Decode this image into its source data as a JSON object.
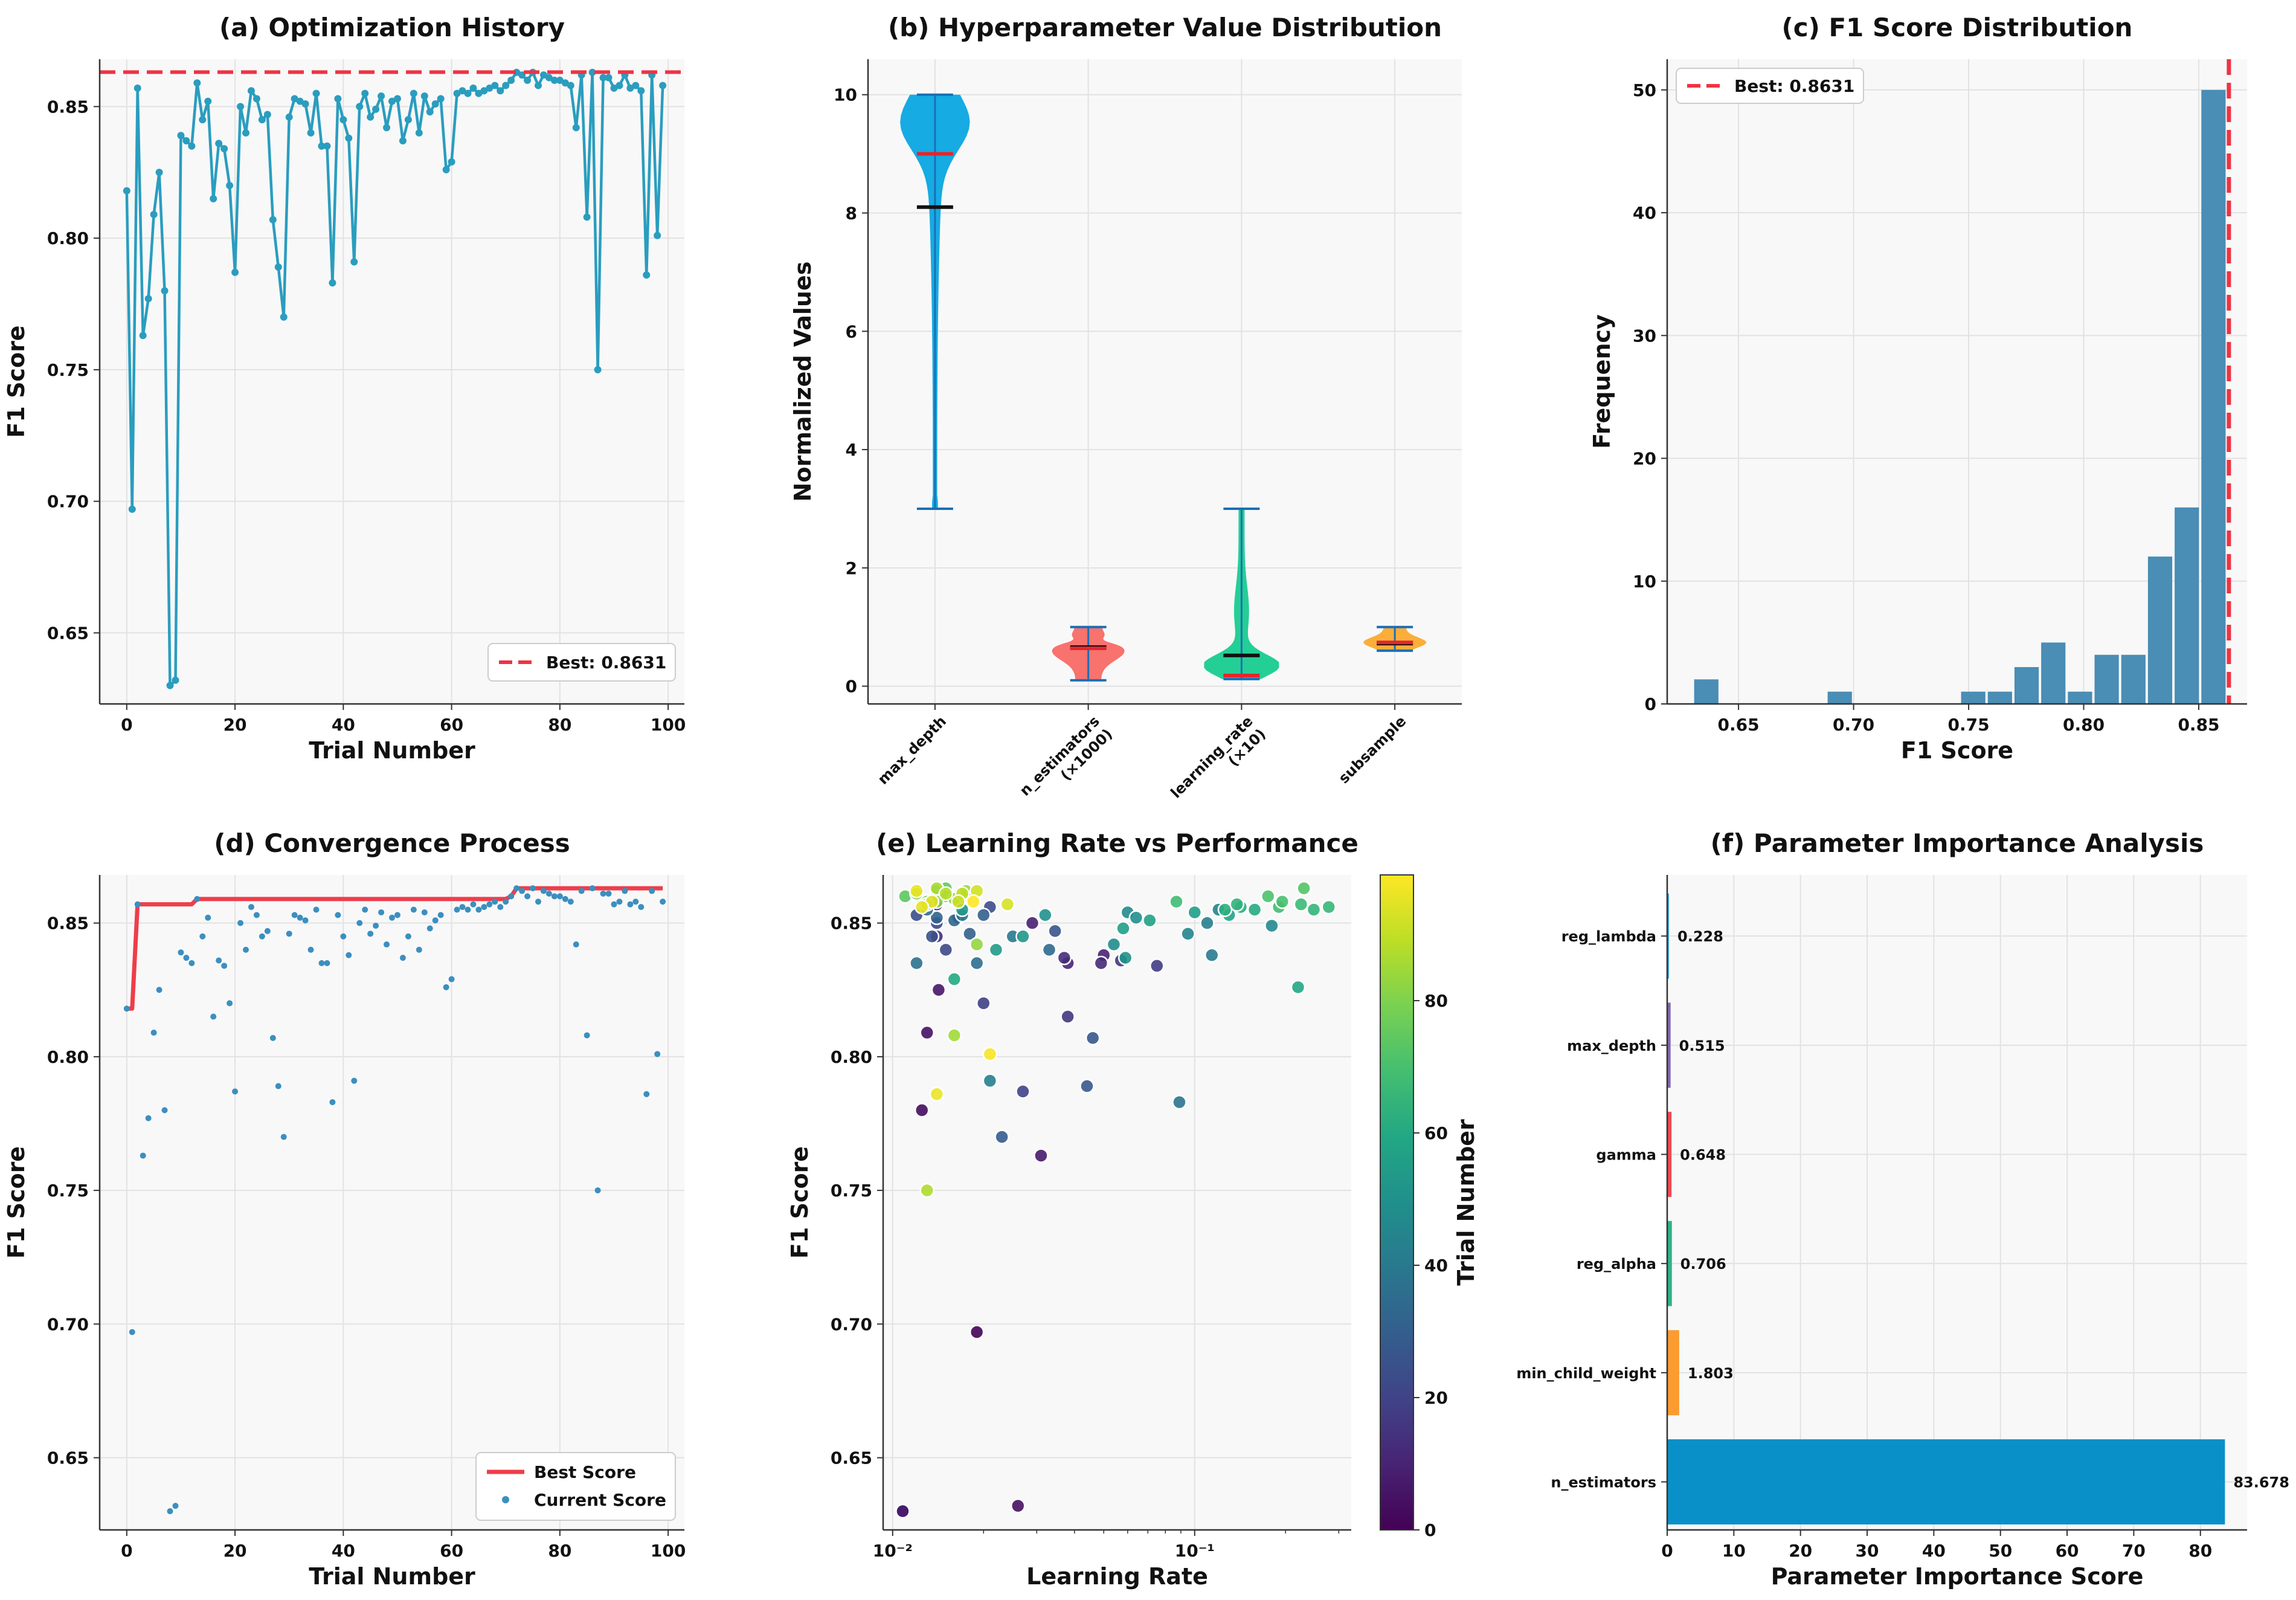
{
  "chart_data": [
    {
      "id": "a",
      "type": "line",
      "title": "(a) Optimization History",
      "xlabel": "Trial Number",
      "ylabel": "F1 Score",
      "xlim": [
        -5,
        103
      ],
      "ylim": [
        0.623,
        0.868
      ],
      "xticks": [
        0,
        20,
        40,
        60,
        80,
        100
      ],
      "yticks": [
        0.65,
        0.7,
        0.75,
        0.8,
        0.85
      ],
      "best": 0.8631,
      "legend": "Best: 0.8631",
      "color": "#2a9dbf",
      "x": [
        0,
        1,
        2,
        3,
        4,
        5,
        6,
        7,
        8,
        9,
        10,
        11,
        12,
        13,
        14,
        15,
        16,
        17,
        18,
        19,
        20,
        21,
        22,
        23,
        24,
        25,
        26,
        27,
        28,
        29,
        30,
        31,
        32,
        33,
        34,
        35,
        36,
        37,
        38,
        39,
        40,
        41,
        42,
        43,
        44,
        45,
        46,
        47,
        48,
        49,
        50,
        51,
        52,
        53,
        54,
        55,
        56,
        57,
        58,
        59,
        60,
        61,
        62,
        63,
        64,
        65,
        66,
        67,
        68,
        69,
        70,
        71,
        72,
        73,
        74,
        75,
        76,
        77,
        78,
        79,
        80,
        81,
        82,
        83,
        84,
        85,
        86,
        87,
        88,
        89,
        90,
        91,
        92,
        93,
        94,
        95,
        96,
        97,
        98,
        99
      ],
      "y": [
        0.818,
        0.697,
        0.857,
        0.763,
        0.777,
        0.809,
        0.825,
        0.78,
        0.63,
        0.632,
        0.839,
        0.837,
        0.835,
        0.859,
        0.845,
        0.852,
        0.815,
        0.836,
        0.834,
        0.82,
        0.787,
        0.85,
        0.84,
        0.856,
        0.853,
        0.845,
        0.847,
        0.807,
        0.789,
        0.77,
        0.846,
        0.853,
        0.852,
        0.851,
        0.84,
        0.855,
        0.835,
        0.835,
        0.783,
        0.853,
        0.845,
        0.838,
        0.791,
        0.85,
        0.855,
        0.846,
        0.849,
        0.854,
        0.842,
        0.852,
        0.853,
        0.837,
        0.845,
        0.855,
        0.84,
        0.854,
        0.848,
        0.851,
        0.853,
        0.826,
        0.829,
        0.855,
        0.856,
        0.855,
        0.857,
        0.855,
        0.856,
        0.857,
        0.858,
        0.856,
        0.858,
        0.86,
        0.863,
        0.862,
        0.86,
        0.863,
        0.858,
        0.862,
        0.861,
        0.86,
        0.86,
        0.859,
        0.858,
        0.842,
        0.862,
        0.808,
        0.863,
        0.75,
        0.861,
        0.861,
        0.857,
        0.858,
        0.862,
        0.857,
        0.858,
        0.856,
        0.786,
        0.862,
        0.801,
        0.858
      ]
    },
    {
      "id": "b",
      "type": "violin",
      "title": "(b) Hyperparameter Value Distribution",
      "ylabel": "Normalized Values",
      "ylim": [
        -0.3,
        10.6
      ],
      "yticks": [
        0,
        2,
        4,
        6,
        8,
        10
      ],
      "categories": [
        "max_depth",
        "n_estimators\n(×1000)",
        "learning_rate\n(×10)",
        "subsample"
      ],
      "colors": [
        "#0aa6e0",
        "#f86a66",
        "#18cc8f",
        "#fbaa2e"
      ],
      "min": [
        3.0,
        0.1,
        0.12,
        0.6
      ],
      "max": [
        10.0,
        1.0,
        3.0,
        1.0
      ],
      "mean": [
        8.1,
        0.66,
        0.52,
        0.72
      ],
      "median": [
        9.0,
        0.64,
        0.18,
        0.74
      ]
    },
    {
      "id": "c",
      "type": "bar",
      "title": "(c) F1 Score Distribution",
      "xlabel": "F1 Score",
      "ylabel": "Frequency",
      "xlim": [
        0.619,
        0.871
      ],
      "ylim": [
        0,
        52.5
      ],
      "xticks": [
        0.65,
        0.7,
        0.75,
        0.8,
        0.85
      ],
      "yticks": [
        0,
        10,
        20,
        30,
        40,
        50
      ],
      "bin_width": 0.0116,
      "bin_starts": [
        0.6302,
        0.6418,
        0.6534,
        0.665,
        0.6766,
        0.6882,
        0.6998,
        0.7114,
        0.723,
        0.7346,
        0.7462,
        0.7578,
        0.7694,
        0.781,
        0.7926,
        0.8042,
        0.8158,
        0.8274,
        0.839,
        0.8506
      ],
      "counts": [
        2,
        0,
        0,
        0,
        0,
        1,
        0,
        0,
        0,
        0,
        1,
        1,
        3,
        5,
        1,
        4,
        4,
        12,
        16,
        50
      ],
      "best": 0.8631,
      "legend": "Best: 0.8631",
      "color": "#4a8db5"
    },
    {
      "id": "d",
      "type": "line+scatter",
      "title": "(d) Convergence Process",
      "xlabel": "Trial Number",
      "ylabel": "F1 Score",
      "xlim": [
        -5,
        103
      ],
      "ylim": [
        0.623,
        0.868
      ],
      "xticks": [
        0,
        20,
        40,
        60,
        80,
        100
      ],
      "yticks": [
        0.65,
        0.7,
        0.75,
        0.8,
        0.85
      ],
      "legend": [
        "Best Score",
        "Current Score"
      ],
      "best_color": "#ef3d4a",
      "point_color": "#3b8fc0"
    },
    {
      "id": "e",
      "type": "scatter",
      "title": "(e) Learning Rate vs Performance",
      "xlabel": "Learning Rate",
      "ylabel": "F1 Score",
      "xscale": "log",
      "xlim": [
        0.0093,
        0.33
      ],
      "ylim": [
        0.623,
        0.868
      ],
      "xtick_labels": [
        "10⁻²",
        "10⁻¹"
      ],
      "yticks": [
        0.65,
        0.7,
        0.75,
        0.8,
        0.85
      ],
      "colorbar_label": "Trial Number",
      "colorbar_ticks": [
        0,
        20,
        40,
        60,
        80
      ],
      "lr": [
        0.0108,
        0.019,
        0.014,
        0.0125,
        0.026,
        0.013,
        0.0142,
        0.031,
        0.0108,
        0.029,
        0.05,
        0.038,
        0.049,
        0.037,
        0.014,
        0.0165,
        0.038,
        0.057,
        0.075,
        0.02,
        0.027,
        0.014,
        0.015,
        0.021,
        0.012,
        0.0135,
        0.0345,
        0.046,
        0.044,
        0.023,
        0.018,
        0.02,
        0.014,
        0.016,
        0.033,
        0.013,
        0.019,
        0.012,
        0.089,
        0.017,
        0.025,
        0.114,
        0.021,
        0.11,
        0.12,
        0.095,
        0.18,
        0.06,
        0.054,
        0.064,
        0.032,
        0.059,
        0.027,
        0.017,
        0.022,
        0.1,
        0.058,
        0.071,
        0.13,
        0.22,
        0.016,
        0.158,
        0.142,
        0.126,
        0.138,
        0.248,
        0.278,
        0.225,
        0.087,
        0.19,
        0.195,
        0.175,
        0.23,
        0.012,
        0.011,
        0.015,
        0.013,
        0.014,
        0.012,
        0.015,
        0.017,
        0.016,
        0.014,
        0.019,
        0.0175,
        0.016,
        0.014,
        0.013,
        0.015,
        0.017,
        0.013,
        0.0165,
        0.019,
        0.024,
        0.0135,
        0.0125,
        0.014,
        0.012,
        0.021,
        0.0185
      ],
      "f1": [
        0.63,
        0.697,
        0.857,
        0.78,
        0.632,
        0.809,
        0.825,
        0.763,
        0.63,
        0.85,
        0.838,
        0.835,
        0.835,
        0.837,
        0.845,
        0.852,
        0.815,
        0.836,
        0.834,
        0.82,
        0.787,
        0.85,
        0.84,
        0.856,
        0.853,
        0.845,
        0.847,
        0.807,
        0.789,
        0.77,
        0.846,
        0.853,
        0.852,
        0.851,
        0.84,
        0.855,
        0.835,
        0.835,
        0.783,
        0.853,
        0.845,
        0.838,
        0.791,
        0.85,
        0.855,
        0.846,
        0.849,
        0.854,
        0.842,
        0.852,
        0.853,
        0.837,
        0.845,
        0.855,
        0.84,
        0.854,
        0.848,
        0.851,
        0.853,
        0.826,
        0.829,
        0.855,
        0.856,
        0.855,
        0.857,
        0.855,
        0.856,
        0.857,
        0.858,
        0.856,
        0.858,
        0.86,
        0.863,
        0.862,
        0.86,
        0.863,
        0.858,
        0.862,
        0.861,
        0.86,
        0.86,
        0.859,
        0.858,
        0.842,
        0.862,
        0.808,
        0.863,
        0.75,
        0.861,
        0.861,
        0.857,
        0.858,
        0.862,
        0.857,
        0.858,
        0.856,
        0.786,
        0.862,
        0.801,
        0.858
      ]
    },
    {
      "id": "f",
      "type": "barh",
      "title": "(f) Parameter Importance Analysis",
      "xlabel": "Parameter Importance Score",
      "xlim": [
        0,
        87
      ],
      "xticks": [
        0,
        10,
        20,
        30,
        40,
        50,
        60,
        70,
        80
      ],
      "categories": [
        "n_estimators",
        "min_child_weight",
        "reg_alpha",
        "gamma",
        "max_depth",
        "reg_lambda"
      ],
      "values": [
        83.678,
        1.803,
        0.706,
        0.648,
        0.515,
        0.228
      ],
      "labels": [
        "83.678",
        "1.803",
        "0.706",
        "0.648",
        "0.515",
        "0.228"
      ],
      "colors": [
        "#0a90c8",
        "#fb9b30",
        "#2eb38a",
        "#ef4a52",
        "#8466b0",
        "#3fa5d2"
      ]
    }
  ]
}
